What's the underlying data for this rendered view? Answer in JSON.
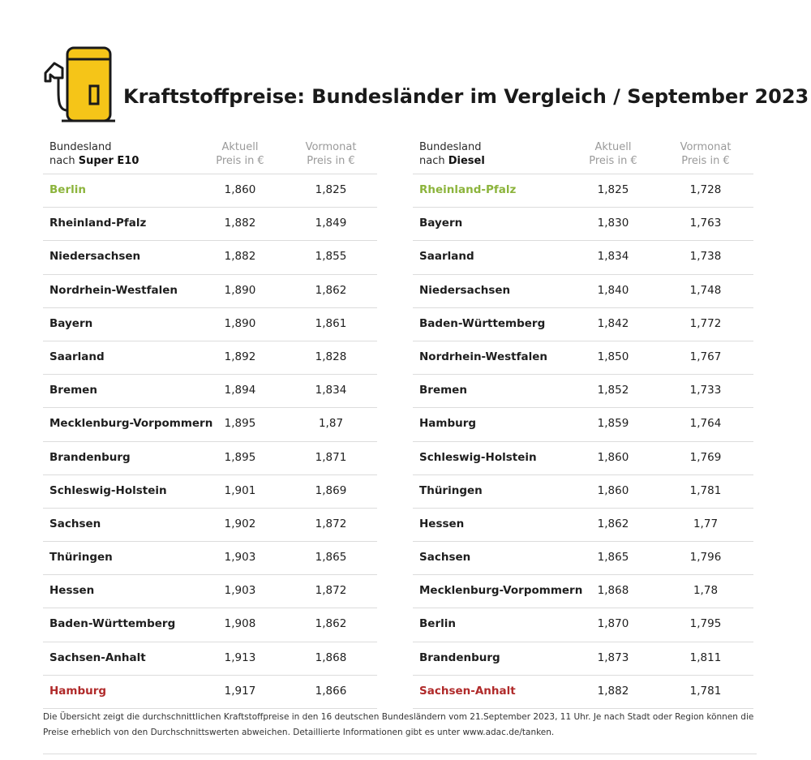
{
  "title": "Kraftstoffpreise: Bundesländer im Vergleich / September 2023",
  "colors": {
    "accent_yellow": "#f5c518",
    "best": "#8cb43c",
    "worst": "#b02a2a"
  },
  "icon": "fuel-pump-icon",
  "left_table": {
    "header": {
      "col1_line1": "Bundesland",
      "col1_line2_prefix": "nach ",
      "col1_line2_bold": "Super E10",
      "col2_line1": "Aktuell",
      "col2_line2": "Preis in €",
      "col3_line1": "Vormonat",
      "col3_line2": "Preis in €"
    },
    "rows": [
      {
        "name": "Berlin",
        "current": "1,860",
        "previous": "1,825",
        "highlight": "best"
      },
      {
        "name": "Rheinland-Pfalz",
        "current": "1,882",
        "previous": "1,849"
      },
      {
        "name": "Niedersachsen",
        "current": "1,882",
        "previous": "1,855"
      },
      {
        "name": "Nordrhein-Westfalen",
        "current": "1,890",
        "previous": "1,862"
      },
      {
        "name": "Bayern",
        "current": "1,890",
        "previous": "1,861"
      },
      {
        "name": "Saarland",
        "current": "1,892",
        "previous": "1,828"
      },
      {
        "name": "Bremen",
        "current": "1,894",
        "previous": "1,834"
      },
      {
        "name": "Mecklenburg-Vorpommern",
        "current": "1,895",
        "previous": "1,87"
      },
      {
        "name": "Brandenburg",
        "current": "1,895",
        "previous": "1,871"
      },
      {
        "name": "Schleswig-Holstein",
        "current": "1,901",
        "previous": "1,869"
      },
      {
        "name": "Sachsen",
        "current": "1,902",
        "previous": "1,872"
      },
      {
        "name": "Thüringen",
        "current": "1,903",
        "previous": "1,865"
      },
      {
        "name": "Hessen",
        "current": "1,903",
        "previous": "1,872"
      },
      {
        "name": "Baden-Württemberg",
        "current": "1,908",
        "previous": "1,862"
      },
      {
        "name": "Sachsen-Anhalt",
        "current": "1,913",
        "previous": "1,868"
      },
      {
        "name": "Hamburg",
        "current": "1,917",
        "previous": "1,866",
        "highlight": "worst"
      }
    ]
  },
  "right_table": {
    "header": {
      "col1_line1": "Bundesland",
      "col1_line2_prefix": "nach ",
      "col1_line2_bold": "Diesel",
      "col2_line1": "Aktuell",
      "col2_line2": "Preis in €",
      "col3_line1": "Vormonat",
      "col3_line2": "Preis in €"
    },
    "rows": [
      {
        "name": "Rheinland-Pfalz",
        "current": "1,825",
        "previous": "1,728",
        "highlight": "best"
      },
      {
        "name": "Bayern",
        "current": "1,830",
        "previous": "1,763"
      },
      {
        "name": "Saarland",
        "current": "1,834",
        "previous": "1,738"
      },
      {
        "name": "Niedersachsen",
        "current": "1,840",
        "previous": "1,748"
      },
      {
        "name": "Baden-Württemberg",
        "current": "1,842",
        "previous": "1,772"
      },
      {
        "name": "Nordrhein-Westfalen",
        "current": "1,850",
        "previous": "1,767"
      },
      {
        "name": "Bremen",
        "current": "1,852",
        "previous": "1,733"
      },
      {
        "name": "Hamburg",
        "current": "1,859",
        "previous": "1,764"
      },
      {
        "name": "Schleswig-Holstein",
        "current": "1,860",
        "previous": "1,769"
      },
      {
        "name": "Thüringen",
        "current": "1,860",
        "previous": "1,781"
      },
      {
        "name": "Hessen",
        "current": "1,862",
        "previous": "1,77"
      },
      {
        "name": "Sachsen",
        "current": "1,865",
        "previous": "1,796"
      },
      {
        "name": "Mecklenburg-Vorpommern",
        "current": "1,868",
        "previous": "1,78"
      },
      {
        "name": "Berlin",
        "current": "1,870",
        "previous": "1,795"
      },
      {
        "name": "Brandenburg",
        "current": "1,873",
        "previous": "1,811"
      },
      {
        "name": "Sachsen-Anhalt",
        "current": "1,882",
        "previous": "1,781",
        "highlight": "worst"
      }
    ]
  },
  "footnote": {
    "line1": "Die Übersicht zeigt die durchschnittlichen Kraftstoffpreise in den 16 deutschen Bundesländern vom 21.September 2023, 11 Uhr. Je nach Stadt oder Region können die",
    "line2": "Preise erheblich von den Durchschnittswerten abweichen. Detaillierte Informationen gibt es unter www.adac.de/tanken."
  }
}
